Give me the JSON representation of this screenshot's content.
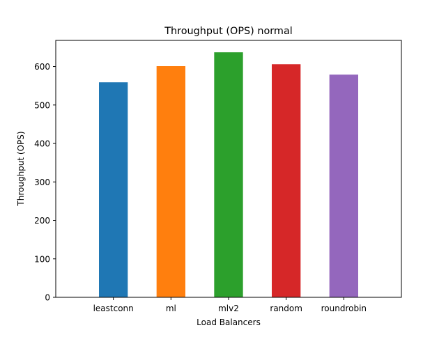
{
  "chart_data": {
    "type": "bar",
    "title": "Throughput (OPS) normal",
    "xlabel": "Load Balancers",
    "ylabel": "Throughput (OPS)",
    "categories": [
      "leastconn",
      "ml",
      "mlv2",
      "random",
      "roundrobin"
    ],
    "values": [
      559,
      601,
      637,
      606,
      579
    ],
    "colors": [
      "#1f77b4",
      "#ff7f0e",
      "#2ca02c",
      "#d62728",
      "#9467bd"
    ],
    "ylim": [
      0,
      668
    ],
    "yticks": [
      0,
      100,
      200,
      300,
      400,
      500,
      600
    ],
    "grid": false,
    "legend": "none"
  }
}
